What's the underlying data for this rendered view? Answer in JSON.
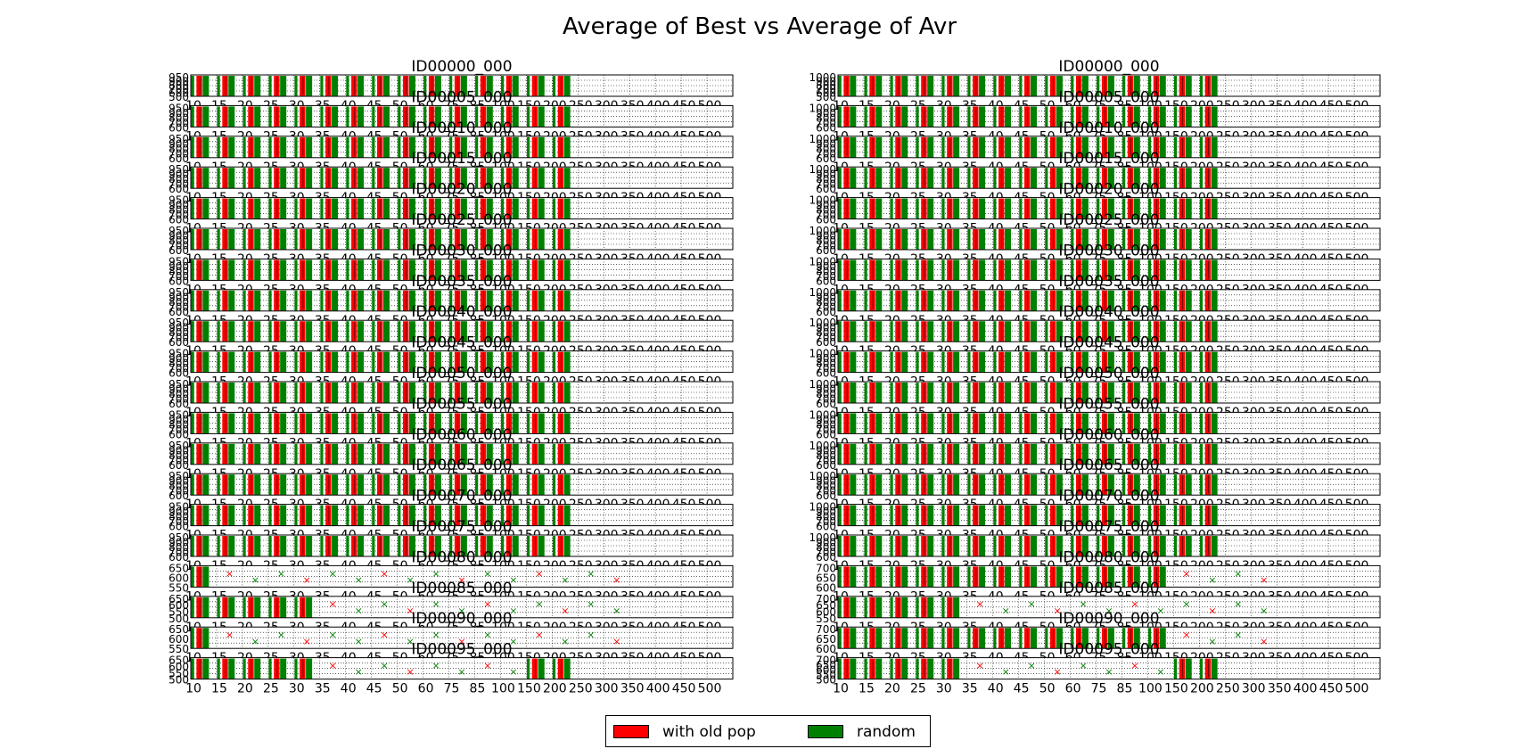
{
  "chart_data": {
    "type": "bar",
    "title": "Average of Best vs Average of Avr",
    "categories": [
      "10",
      "15",
      "20",
      "25",
      "30",
      "35",
      "40",
      "45",
      "50",
      "60",
      "75",
      "85",
      "100",
      "150",
      "200",
      "250",
      "300",
      "350",
      "400",
      "450",
      "500"
    ],
    "legend": {
      "placement": "bottom-center",
      "entries": [
        "with old pop",
        "random"
      ]
    },
    "grid": true,
    "series_colors": {
      "with old pop": "#ff0000",
      "random": "#008000"
    },
    "panels": [
      {
        "title": "ID00000_000",
        "column": "left",
        "ylim": [
          0,
          950
        ],
        "yticks": [
          "950",
          "900",
          "800",
          "700",
          "600",
          "500"
        ],
        "marker_categories": []
      },
      {
        "title": "ID00005_000",
        "column": "left",
        "ylim": [
          0,
          950
        ],
        "yticks": [
          "950",
          "900",
          "800",
          "700",
          "600"
        ],
        "marker_categories": []
      },
      {
        "title": "ID00010_000",
        "column": "left",
        "ylim": [
          0,
          950
        ],
        "yticks": [
          "950",
          "900",
          "800",
          "700",
          "600"
        ],
        "marker_categories": []
      },
      {
        "title": "ID00015_000",
        "column": "left",
        "ylim": [
          0,
          950
        ],
        "yticks": [
          "950",
          "900",
          "800",
          "700",
          "600"
        ],
        "marker_categories": []
      },
      {
        "title": "ID00020_000",
        "column": "left",
        "ylim": [
          0,
          950
        ],
        "yticks": [
          "950",
          "900",
          "800",
          "700",
          "600"
        ],
        "marker_categories": []
      },
      {
        "title": "ID00025_000",
        "column": "left",
        "ylim": [
          0,
          950
        ],
        "yticks": [
          "950",
          "900",
          "800",
          "700",
          "600"
        ],
        "marker_categories": []
      },
      {
        "title": "ID00030_000",
        "column": "left",
        "ylim": [
          0,
          950
        ],
        "yticks": [
          "950",
          "900",
          "800",
          "700",
          "600"
        ],
        "marker_categories": []
      },
      {
        "title": "ID00035_000",
        "column": "left",
        "ylim": [
          0,
          950
        ],
        "yticks": [
          "950",
          "900",
          "800",
          "700",
          "600"
        ],
        "marker_categories": []
      },
      {
        "title": "ID00040_000",
        "column": "left",
        "ylim": [
          0,
          950
        ],
        "yticks": [
          "950",
          "900",
          "800",
          "700",
          "600"
        ],
        "marker_categories": []
      },
      {
        "title": "ID00045_000",
        "column": "left",
        "ylim": [
          0,
          950
        ],
        "yticks": [
          "950",
          "900",
          "800",
          "700",
          "600"
        ],
        "marker_categories": []
      },
      {
        "title": "ID00050_000",
        "column": "left",
        "ylim": [
          0,
          950
        ],
        "yticks": [
          "950",
          "900",
          "800",
          "700",
          "600"
        ],
        "marker_categories": []
      },
      {
        "title": "ID00055_000",
        "column": "left",
        "ylim": [
          0,
          950
        ],
        "yticks": [
          "950",
          "900",
          "800",
          "700",
          "600"
        ],
        "marker_categories": []
      },
      {
        "title": "ID00060_000",
        "column": "left",
        "ylim": [
          0,
          950
        ],
        "yticks": [
          "950",
          "900",
          "800",
          "700",
          "600"
        ],
        "marker_categories": []
      },
      {
        "title": "ID00065_000",
        "column": "left",
        "ylim": [
          0,
          950
        ],
        "yticks": [
          "950",
          "900",
          "800",
          "700",
          "600"
        ],
        "marker_categories": []
      },
      {
        "title": "ID00070_000",
        "column": "left",
        "ylim": [
          0,
          950
        ],
        "yticks": [
          "950",
          "900",
          "800",
          "700",
          "600"
        ],
        "marker_categories": []
      },
      {
        "title": "ID00075_000",
        "column": "left",
        "ylim": [
          0,
          950
        ],
        "yticks": [
          "950",
          "900",
          "800",
          "700",
          "600"
        ],
        "marker_categories": []
      },
      {
        "title": "ID00080_000",
        "column": "left",
        "ylim": [
          0,
          650
        ],
        "yticks": [
          "650",
          "600",
          "550"
        ],
        "marker_categories": [
          "15",
          "20",
          "25",
          "30",
          "35",
          "40",
          "45",
          "50",
          "60",
          "75",
          "85",
          "100",
          "150",
          "200",
          "250",
          "300"
        ]
      },
      {
        "title": "ID00085_000",
        "column": "left",
        "ylim": [
          0,
          650
        ],
        "yticks": [
          "650",
          "600",
          "550",
          "500"
        ],
        "marker_categories": [
          "35",
          "40",
          "45",
          "50",
          "60",
          "75",
          "85",
          "100",
          "150",
          "200",
          "250",
          "300"
        ]
      },
      {
        "title": "ID00090_000",
        "column": "left",
        "ylim": [
          0,
          650
        ],
        "yticks": [
          "650",
          "600",
          "550"
        ],
        "marker_categories": [
          "15",
          "20",
          "25",
          "30",
          "35",
          "40",
          "45",
          "50",
          "60",
          "75",
          "85",
          "100",
          "150",
          "200",
          "250",
          "300"
        ]
      },
      {
        "title": "ID00095_000",
        "column": "left",
        "ylim": [
          0,
          650
        ],
        "yticks": [
          "650",
          "600",
          "550",
          "500"
        ],
        "marker_categories": [
          "35",
          "40",
          "45",
          "50",
          "60",
          "75",
          "85",
          "100"
        ]
      },
      {
        "title": "ID00000_000",
        "column": "right",
        "ylim": [
          0,
          1000
        ],
        "yticks": [
          "1000",
          "900",
          "800",
          "700",
          "600",
          "500"
        ],
        "marker_categories": []
      },
      {
        "title": "ID00005_000",
        "column": "right",
        "ylim": [
          0,
          1000
        ],
        "yticks": [
          "1000",
          "900",
          "800",
          "700",
          "600"
        ],
        "marker_categories": []
      },
      {
        "title": "ID00010_000",
        "column": "right",
        "ylim": [
          0,
          1000
        ],
        "yticks": [
          "1000",
          "900",
          "800",
          "700",
          "600"
        ],
        "marker_categories": []
      },
      {
        "title": "ID00015_000",
        "column": "right",
        "ylim": [
          0,
          1000
        ],
        "yticks": [
          "1000",
          "900",
          "800",
          "700",
          "600"
        ],
        "marker_categories": []
      },
      {
        "title": "ID00020_000",
        "column": "right",
        "ylim": [
          0,
          1000
        ],
        "yticks": [
          "1000",
          "900",
          "800",
          "700",
          "600"
        ],
        "marker_categories": []
      },
      {
        "title": "ID00025_000",
        "column": "right",
        "ylim": [
          0,
          1000
        ],
        "yticks": [
          "1000",
          "900",
          "800",
          "700",
          "600"
        ],
        "marker_categories": []
      },
      {
        "title": "ID00030_000",
        "column": "right",
        "ylim": [
          0,
          1000
        ],
        "yticks": [
          "1000",
          "900",
          "800",
          "700",
          "600"
        ],
        "marker_categories": []
      },
      {
        "title": "ID00035_000",
        "column": "right",
        "ylim": [
          0,
          1000
        ],
        "yticks": [
          "1000",
          "900",
          "800",
          "700",
          "600"
        ],
        "marker_categories": []
      },
      {
        "title": "ID00040_000",
        "column": "right",
        "ylim": [
          0,
          1000
        ],
        "yticks": [
          "1000",
          "900",
          "800",
          "700",
          "600"
        ],
        "marker_categories": []
      },
      {
        "title": "ID00045_000",
        "column": "right",
        "ylim": [
          0,
          1000
        ],
        "yticks": [
          "1000",
          "900",
          "800",
          "700",
          "600"
        ],
        "marker_categories": []
      },
      {
        "title": "ID00050_000",
        "column": "right",
        "ylim": [
          0,
          1000
        ],
        "yticks": [
          "1000",
          "900",
          "800",
          "700",
          "600"
        ],
        "marker_categories": []
      },
      {
        "title": "ID00055_000",
        "column": "right",
        "ylim": [
          0,
          1000
        ],
        "yticks": [
          "1000",
          "900",
          "800",
          "700",
          "600"
        ],
        "marker_categories": []
      },
      {
        "title": "ID00060_000",
        "column": "right",
        "ylim": [
          0,
          1000
        ],
        "yticks": [
          "1000",
          "900",
          "800",
          "700",
          "600"
        ],
        "marker_categories": []
      },
      {
        "title": "ID00065_000",
        "column": "right",
        "ylim": [
          0,
          1000
        ],
        "yticks": [
          "1000",
          "900",
          "800",
          "700",
          "600"
        ],
        "marker_categories": []
      },
      {
        "title": "ID00070_000",
        "column": "right",
        "ylim": [
          0,
          1000
        ],
        "yticks": [
          "1000",
          "900",
          "800",
          "700",
          "600"
        ],
        "marker_categories": []
      },
      {
        "title": "ID00075_000",
        "column": "right",
        "ylim": [
          0,
          1000
        ],
        "yticks": [
          "1000",
          "900",
          "800",
          "700",
          "600"
        ],
        "marker_categories": []
      },
      {
        "title": "ID00080_000",
        "column": "right",
        "ylim": [
          0,
          700
        ],
        "yticks": [
          "700",
          "650",
          "600"
        ],
        "marker_categories": [
          "150",
          "200",
          "250",
          "300"
        ]
      },
      {
        "title": "ID00085_000",
        "column": "right",
        "ylim": [
          0,
          700
        ],
        "yticks": [
          "700",
          "650",
          "600",
          "550"
        ],
        "marker_categories": [
          "35",
          "40",
          "45",
          "50",
          "60",
          "75",
          "85",
          "100",
          "150",
          "200",
          "250",
          "300"
        ]
      },
      {
        "title": "ID00090_000",
        "column": "right",
        "ylim": [
          0,
          700
        ],
        "yticks": [
          "700",
          "650",
          "600"
        ],
        "marker_categories": [
          "150",
          "200",
          "250",
          "300"
        ]
      },
      {
        "title": "ID00095_000",
        "column": "right",
        "ylim": [
          0,
          700
        ],
        "yticks": [
          "700",
          "650",
          "600",
          "550",
          "500"
        ],
        "marker_categories": [
          "35",
          "40",
          "45",
          "50",
          "60",
          "75",
          "85",
          "100"
        ]
      }
    ]
  }
}
